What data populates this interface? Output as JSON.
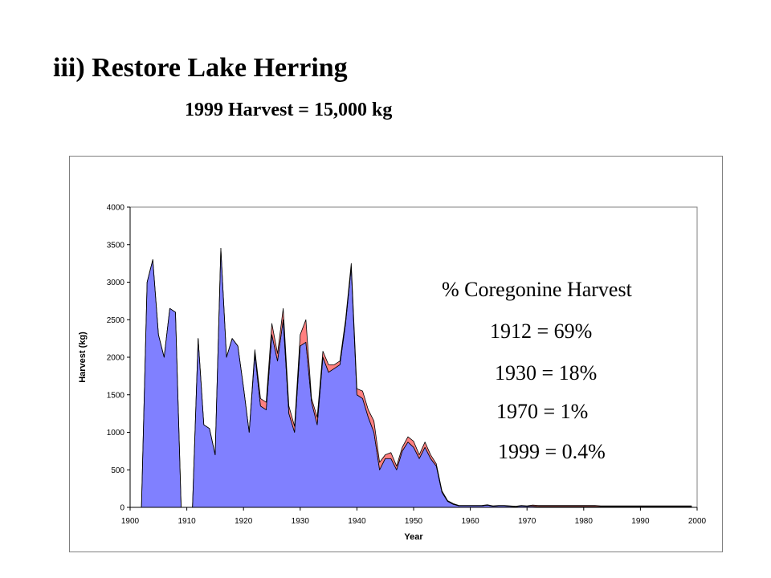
{
  "slide": {
    "title": "iii) Restore Lake Herring",
    "subtitle": "1999 Harvest = 15,000 kg"
  },
  "annotation": {
    "heading": "% Coregonine Harvest",
    "lines": [
      "1912 = 69%",
      "1930 = 18%",
      "1970 = 1%",
      "1999 = 0.4%"
    ]
  },
  "chart_data": {
    "type": "area",
    "stacked": true,
    "xlabel": "Year",
    "ylabel": "Harvest (kg)",
    "xlim": [
      1900,
      2000
    ],
    "ylim": [
      0,
      4000
    ],
    "xticks": [
      "1900",
      "1910",
      "1920",
      "1930",
      "1940",
      "1950",
      "1960",
      "1970",
      "1980",
      "1990",
      "2000"
    ],
    "yticks": [
      "0",
      "500",
      "1000",
      "1500",
      "2000",
      "2500",
      "3000",
      "3500",
      "4000"
    ],
    "x": [
      1902,
      1903,
      1904,
      1905,
      1906,
      1907,
      1908,
      1909,
      1910,
      1911,
      1912,
      1913,
      1914,
      1915,
      1916,
      1917,
      1918,
      1919,
      1920,
      1921,
      1922,
      1923,
      1924,
      1925,
      1926,
      1927,
      1928,
      1929,
      1930,
      1931,
      1932,
      1933,
      1934,
      1935,
      1936,
      1937,
      1938,
      1939,
      1940,
      1941,
      1942,
      1943,
      1944,
      1945,
      1946,
      1947,
      1948,
      1949,
      1950,
      1951,
      1952,
      1953,
      1954,
      1955,
      1956,
      1957,
      1958,
      1959,
      1960,
      1961,
      1962,
      1963,
      1964,
      1965,
      1966,
      1967,
      1968,
      1969,
      1970,
      1971,
      1972,
      1973,
      1974,
      1975,
      1976,
      1977,
      1978,
      1979,
      1980,
      1981,
      1982,
      1983,
      1984,
      1985,
      1986,
      1987,
      1988,
      1989,
      1990,
      1991,
      1992,
      1993,
      1994,
      1995,
      1996,
      1997,
      1998,
      1999
    ],
    "series": [
      {
        "color": "#8080ff",
        "values": [
          0,
          3000,
          3300,
          2300,
          2000,
          2650,
          2600,
          0,
          0,
          0,
          2250,
          1100,
          1050,
          700,
          3450,
          2000,
          2250,
          2150,
          1600,
          1000,
          2050,
          1350,
          1300,
          2300,
          1950,
          2500,
          1250,
          1000,
          2150,
          2200,
          1400,
          1100,
          2000,
          1800,
          1850,
          1900,
          2450,
          3200,
          1500,
          1450,
          1200,
          1000,
          500,
          650,
          650,
          500,
          750,
          870,
          800,
          650,
          800,
          650,
          550,
          200,
          80,
          40,
          20,
          20,
          20,
          20,
          20,
          30,
          15,
          20,
          20,
          15,
          10,
          20,
          15,
          15,
          10,
          10,
          10,
          10,
          10,
          10,
          10,
          10,
          10,
          10,
          10,
          10,
          10,
          10,
          10,
          10,
          10,
          10,
          10,
          10,
          10,
          10,
          10,
          10,
          10,
          10,
          10,
          10
        ]
      },
      {
        "color": "#ff8080",
        "values": [
          0,
          0,
          0,
          0,
          0,
          0,
          0,
          0,
          0,
          0,
          0,
          0,
          0,
          0,
          0,
          0,
          0,
          0,
          0,
          0,
          50,
          100,
          100,
          150,
          100,
          150,
          100,
          80,
          150,
          300,
          50,
          100,
          80,
          100,
          50,
          50,
          50,
          50,
          80,
          100,
          100,
          150,
          100,
          50,
          80,
          50,
          50,
          70,
          80,
          50,
          70,
          50,
          30,
          20,
          10,
          10,
          5,
          5,
          5,
          5,
          5,
          5,
          5,
          5,
          5,
          5,
          5,
          5,
          5,
          15,
          15,
          15,
          15,
          15,
          15,
          15,
          15,
          15,
          15,
          15,
          15,
          10,
          10,
          10,
          10,
          10,
          10,
          10,
          10,
          10,
          10,
          10,
          10,
          10,
          10,
          10,
          10,
          10
        ]
      }
    ]
  }
}
